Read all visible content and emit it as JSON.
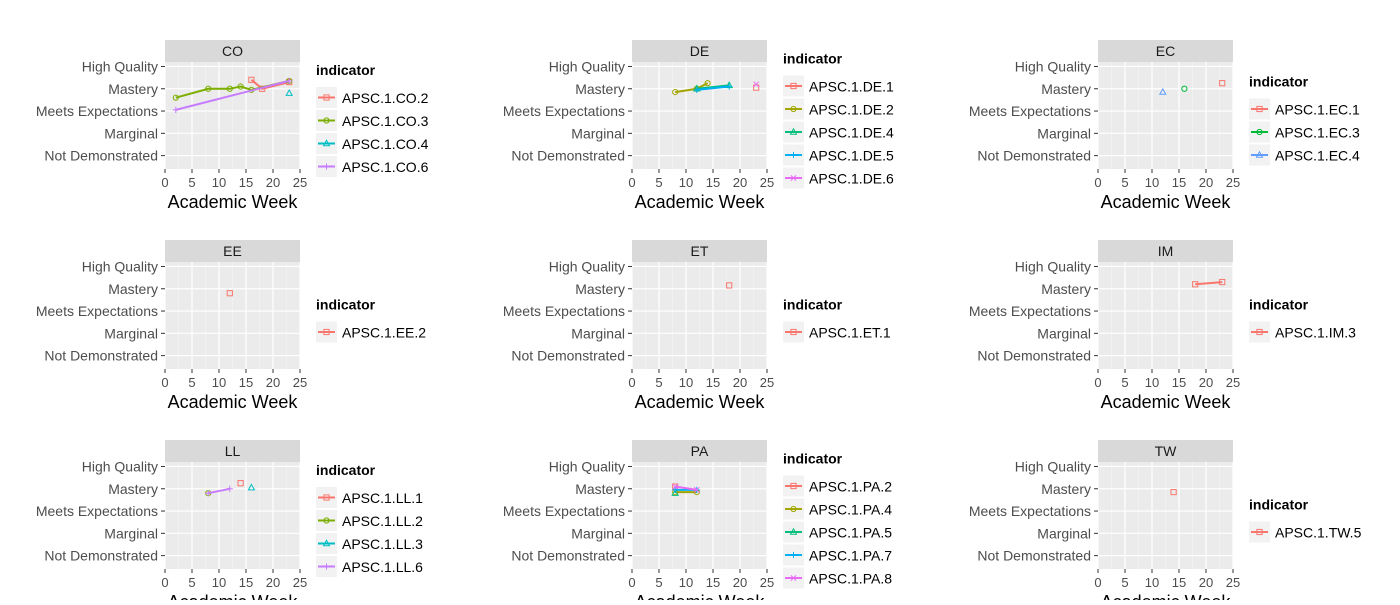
{
  "chart_data": [
    {
      "type": "line",
      "title": "CO",
      "xlabel": "Academic Week",
      "ylabel": "",
      "xlim": [
        0,
        25
      ],
      "x_ticks": [
        "0",
        "5",
        "10",
        "15",
        "20",
        "25"
      ],
      "y_categories": [
        "Not Demonstrated",
        "Marginal",
        "Meets Expectations",
        "Mastery",
        "High Quality"
      ],
      "legend_title": "indicator",
      "series": [
        {
          "name": "APSC.1.CO.2",
          "color": "#F8766D",
          "shape": "square",
          "points": [
            [
              16,
              4.4
            ],
            [
              18,
              4.0
            ],
            [
              23,
              4.3
            ]
          ]
        },
        {
          "name": "APSC.1.CO.3",
          "color": "#7CAE00",
          "shape": "circle",
          "points": [
            [
              2,
              3.6
            ],
            [
              8,
              4.0
            ],
            [
              12,
              4.0
            ],
            [
              14,
              4.1
            ],
            [
              16,
              3.95
            ],
            [
              23,
              4.35
            ]
          ]
        },
        {
          "name": "APSC.1.CO.4",
          "color": "#00BFC4",
          "shape": "triangle",
          "points": [
            [
              23,
              3.8
            ]
          ]
        },
        {
          "name": "APSC.1.CO.6",
          "color": "#C77CFF",
          "shape": "plus",
          "points": [
            [
              2,
              3.05
            ],
            [
              23,
              4.35
            ]
          ]
        }
      ]
    },
    {
      "type": "line",
      "title": "DE",
      "xlabel": "Academic Week",
      "ylabel": "",
      "xlim": [
        0,
        25
      ],
      "x_ticks": [
        "0",
        "5",
        "10",
        "15",
        "20",
        "25"
      ],
      "y_categories": [
        "Not Demonstrated",
        "Marginal",
        "Meets Expectations",
        "Mastery",
        "High Quality"
      ],
      "legend_title": "indicator",
      "series": [
        {
          "name": "APSC.1.DE.1",
          "color": "#F8766D",
          "shape": "square",
          "points": [
            [
              23,
              4.05
            ]
          ]
        },
        {
          "name": "APSC.1.DE.2",
          "color": "#A3A500",
          "shape": "circle",
          "points": [
            [
              8,
              3.85
            ],
            [
              12,
              4.0
            ],
            [
              14,
              4.25
            ]
          ]
        },
        {
          "name": "APSC.1.DE.4",
          "color": "#00BF7D",
          "shape": "triangle",
          "points": [
            [
              12,
              4.0
            ],
            [
              18,
              4.15
            ]
          ]
        },
        {
          "name": "APSC.1.DE.5",
          "color": "#00B0F6",
          "shape": "plus",
          "points": [
            [
              12,
              3.95
            ],
            [
              18,
              4.1
            ]
          ]
        },
        {
          "name": "APSC.1.DE.6",
          "color": "#E76BF3",
          "shape": "cross",
          "points": [
            [
              23,
              4.2
            ]
          ]
        }
      ]
    },
    {
      "type": "line",
      "title": "EC",
      "xlabel": "Academic Week",
      "ylabel": "",
      "xlim": [
        0,
        25
      ],
      "x_ticks": [
        "0",
        "5",
        "10",
        "15",
        "20",
        "25"
      ],
      "y_categories": [
        "Not Demonstrated",
        "Marginal",
        "Meets Expectations",
        "Mastery",
        "High Quality"
      ],
      "legend_title": "indicator",
      "series": [
        {
          "name": "APSC.1.EC.1",
          "color": "#F8766D",
          "shape": "square",
          "points": [
            [
              23,
              4.25
            ]
          ]
        },
        {
          "name": "APSC.1.EC.3",
          "color": "#00BA38",
          "shape": "circle",
          "points": [
            [
              16,
              4.0
            ]
          ]
        },
        {
          "name": "APSC.1.EC.4",
          "color": "#619CFF",
          "shape": "triangle",
          "points": [
            [
              12,
              3.85
            ]
          ]
        }
      ]
    },
    {
      "type": "line",
      "title": "EE",
      "xlabel": "Academic Week",
      "ylabel": "",
      "xlim": [
        0,
        25
      ],
      "x_ticks": [
        "0",
        "5",
        "10",
        "15",
        "20",
        "25"
      ],
      "y_categories": [
        "Not Demonstrated",
        "Marginal",
        "Meets Expectations",
        "Mastery",
        "High Quality"
      ],
      "legend_title": "indicator",
      "series": [
        {
          "name": "APSC.1.EE.2",
          "color": "#F8766D",
          "shape": "square",
          "points": [
            [
              12,
              3.8
            ]
          ]
        }
      ]
    },
    {
      "type": "line",
      "title": "ET",
      "xlabel": "Academic Week",
      "ylabel": "",
      "xlim": [
        0,
        25
      ],
      "x_ticks": [
        "0",
        "5",
        "10",
        "15",
        "20",
        "25"
      ],
      "y_categories": [
        "Not Demonstrated",
        "Marginal",
        "Meets Expectations",
        "Mastery",
        "High Quality"
      ],
      "legend_title": "indicator",
      "series": [
        {
          "name": "APSC.1.ET.1",
          "color": "#F8766D",
          "shape": "square",
          "points": [
            [
              18,
              4.15
            ]
          ]
        }
      ]
    },
    {
      "type": "line",
      "title": "IM",
      "xlabel": "Academic Week",
      "ylabel": "",
      "xlim": [
        0,
        25
      ],
      "x_ticks": [
        "0",
        "5",
        "10",
        "15",
        "20",
        "25"
      ],
      "y_categories": [
        "Not Demonstrated",
        "Marginal",
        "Meets Expectations",
        "Mastery",
        "High Quality"
      ],
      "legend_title": "indicator",
      "series": [
        {
          "name": "APSC.1.IM.3",
          "color": "#F8766D",
          "shape": "square",
          "points": [
            [
              18,
              4.2
            ],
            [
              23,
              4.3
            ]
          ]
        }
      ]
    },
    {
      "type": "line",
      "title": "LL",
      "xlabel": "Academic Week",
      "ylabel": "",
      "xlim": [
        0,
        25
      ],
      "x_ticks": [
        "0",
        "5",
        "10",
        "15",
        "20",
        "25"
      ],
      "y_categories": [
        "Not Demonstrated",
        "Marginal",
        "Meets Expectations",
        "Mastery",
        "High Quality"
      ],
      "legend_title": "indicator",
      "series": [
        {
          "name": "APSC.1.LL.1",
          "color": "#F8766D",
          "shape": "square",
          "points": [
            [
              14,
              4.25
            ]
          ]
        },
        {
          "name": "APSC.1.LL.2",
          "color": "#7CAE00",
          "shape": "circle",
          "points": [
            [
              8,
              3.8
            ]
          ]
        },
        {
          "name": "APSC.1.LL.3",
          "color": "#00BFC4",
          "shape": "triangle",
          "points": [
            [
              16,
              4.05
            ]
          ]
        },
        {
          "name": "APSC.1.LL.6",
          "color": "#C77CFF",
          "shape": "plus",
          "points": [
            [
              8,
              3.8
            ],
            [
              12,
              4.0
            ]
          ]
        }
      ]
    },
    {
      "type": "line",
      "title": "PA",
      "xlabel": "Academic Week",
      "ylabel": "",
      "xlim": [
        0,
        25
      ],
      "x_ticks": [
        "0",
        "5",
        "10",
        "15",
        "20",
        "25"
      ],
      "y_categories": [
        "Not Demonstrated",
        "Marginal",
        "Meets Expectations",
        "Mastery",
        "High Quality"
      ],
      "legend_title": "indicator",
      "series": [
        {
          "name": "APSC.1.PA.2",
          "color": "#F8766D",
          "shape": "square",
          "points": [
            [
              8,
              4.1
            ]
          ]
        },
        {
          "name": "APSC.1.PA.4",
          "color": "#A3A500",
          "shape": "circle",
          "points": [
            [
              8,
              3.85
            ],
            [
              12,
              3.85
            ]
          ]
        },
        {
          "name": "APSC.1.PA.5",
          "color": "#00BF7D",
          "shape": "triangle",
          "points": [
            [
              8,
              3.8
            ]
          ]
        },
        {
          "name": "APSC.1.PA.7",
          "color": "#00B0F6",
          "shape": "plus",
          "points": [
            [
              8,
              3.95
            ],
            [
              12,
              3.95
            ]
          ]
        },
        {
          "name": "APSC.1.PA.8",
          "color": "#E76BF3",
          "shape": "cross",
          "points": [
            [
              8,
              4.1
            ],
            [
              12,
              3.95
            ]
          ]
        }
      ]
    },
    {
      "type": "line",
      "title": "TW",
      "xlabel": "Academic Week",
      "ylabel": "",
      "xlim": [
        0,
        25
      ],
      "x_ticks": [
        "0",
        "5",
        "10",
        "15",
        "20",
        "25"
      ],
      "y_categories": [
        "Not Demonstrated",
        "Marginal",
        "Meets Expectations",
        "Mastery",
        "High Quality"
      ],
      "legend_title": "indicator",
      "series": [
        {
          "name": "APSC.1.TW.5",
          "color": "#F8766D",
          "shape": "square",
          "points": [
            [
              14,
              3.85
            ]
          ]
        }
      ]
    }
  ]
}
